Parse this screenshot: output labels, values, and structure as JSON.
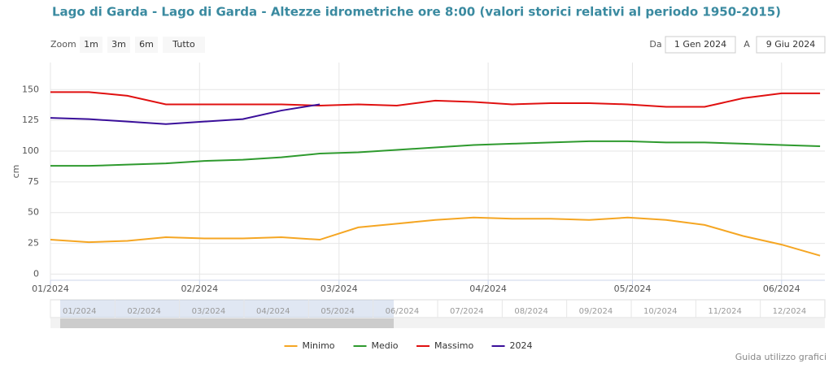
{
  "chart_data": {
    "type": "line",
    "title": "Lago di Garda - Lago di Garda - Altezze idrometriche ore 8:00 (valori storici relativi al periodo 1950-2015)",
    "y_label": "cm",
    "x": [
      0,
      8,
      16,
      24,
      32,
      40,
      48,
      56,
      64,
      72,
      80,
      88,
      96,
      104,
      112,
      120,
      128,
      136,
      144,
      152,
      160
    ],
    "xlim": [
      0,
      161
    ],
    "xticks": [
      {
        "value": 0,
        "label": "01/2024"
      },
      {
        "value": 31,
        "label": "02/2024"
      },
      {
        "value": 60,
        "label": "03/2024"
      },
      {
        "value": 91,
        "label": "04/2024"
      },
      {
        "value": 121,
        "label": "05/2024"
      },
      {
        "value": 152,
        "label": "06/2024"
      }
    ],
    "ylim": [
      -5,
      172
    ],
    "yticks": [
      0,
      25,
      50,
      75,
      100,
      125,
      150
    ],
    "grid": true,
    "series": [
      {
        "name": "Minimo",
        "color": "#f5a623",
        "values": [
          28,
          26,
          27,
          30,
          29,
          29,
          30,
          28,
          38,
          41,
          44,
          46,
          45,
          45,
          44,
          46,
          44,
          40,
          31,
          24,
          15
        ]
      },
      {
        "name": "Medio",
        "color": "#2e9a2e",
        "values": [
          88,
          88,
          89,
          90,
          92,
          93,
          95,
          98,
          99,
          101,
          103,
          105,
          106,
          107,
          108,
          108,
          107,
          107,
          106,
          105,
          104
        ]
      },
      {
        "name": "Massimo",
        "color": "#e01010",
        "values": [
          148,
          148,
          145,
          138,
          138,
          138,
          138,
          137,
          138,
          137,
          141,
          140,
          138,
          139,
          139,
          138,
          136,
          136,
          143,
          147,
          147
        ]
      },
      {
        "name": "2024",
        "color": "#3a0f9a",
        "values": [
          127,
          126,
          124,
          122,
          124,
          126,
          133,
          138,
          null,
          null,
          null,
          null,
          null,
          null,
          null,
          null,
          null,
          null,
          null,
          null,
          null
        ]
      }
    ]
  },
  "range_selector": {
    "label": "Zoom",
    "buttons": [
      "1m",
      "3m",
      "6m",
      "Tutto"
    ],
    "from_label": "Da",
    "from": "1 Gen 2024",
    "to_label": "A",
    "to": "9 Giu 2024"
  },
  "navigator": {
    "labels": [
      "01/2024",
      "02/2024",
      "03/2024",
      "04/2024",
      "05/2024",
      "06/2024",
      "07/2024",
      "08/2024",
      "09/2024",
      "10/2024",
      "11/2024",
      "12/2024"
    ]
  },
  "footer": "Guida utilizzo grafici"
}
